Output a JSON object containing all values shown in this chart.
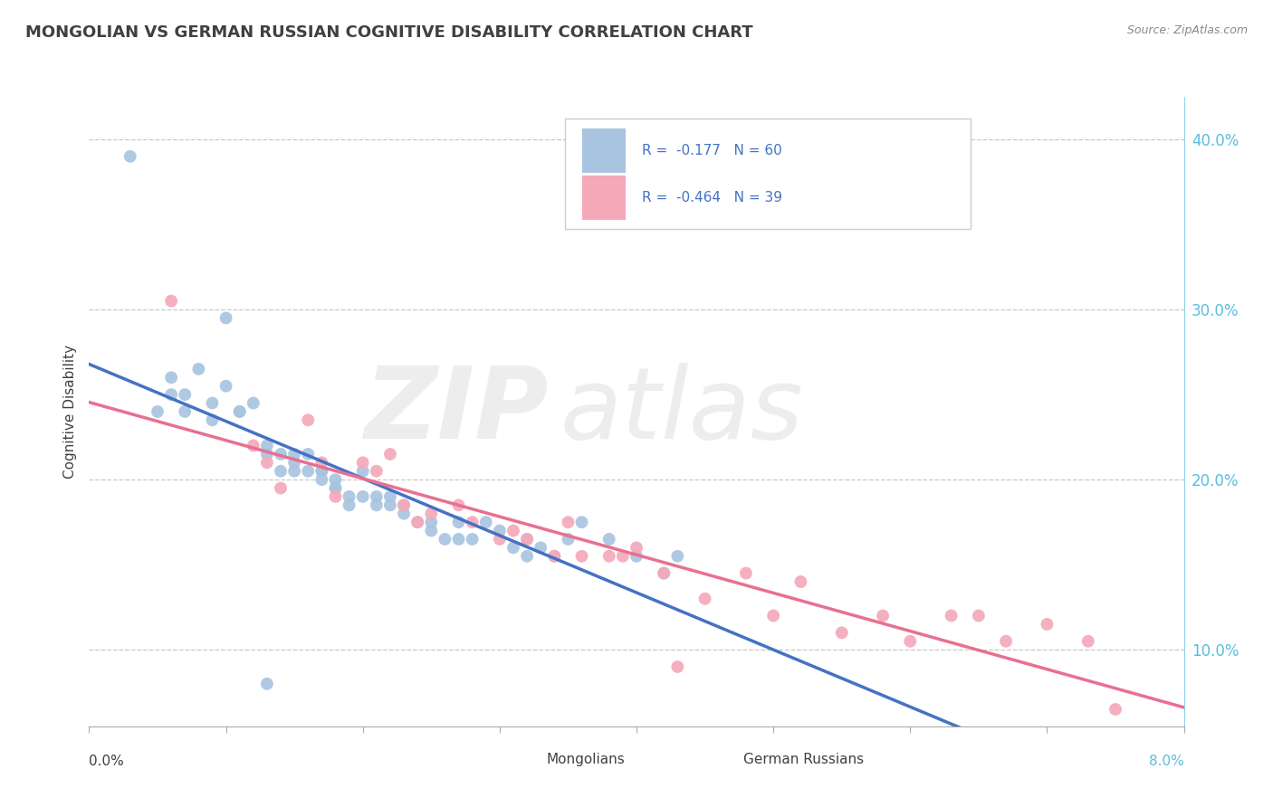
{
  "title": "MONGOLIAN VS GERMAN RUSSIAN COGNITIVE DISABILITY CORRELATION CHART",
  "source": "Source: ZipAtlas.com",
  "ylabel": "Cognitive Disability",
  "r_mongolian": -0.177,
  "n_mongolian": 60,
  "r_german_russian": -0.464,
  "n_german_russian": 39,
  "mongolian_color": "#a8c4e0",
  "german_russian_color": "#f4a8b8",
  "mongolian_line_color": "#4472c4",
  "german_russian_line_color": "#e87090",
  "legend_text_color": "#4472c4",
  "title_color": "#404040",
  "background_color": "#ffffff",
  "grid_color": "#c8c8c8",
  "right_axis_color": "#5bbde0",
  "y_ticks_right": [
    0.1,
    0.2,
    0.3,
    0.4
  ],
  "y_tick_labels_right": [
    "10.0%",
    "20.0%",
    "30.0%",
    "40.0%"
  ],
  "x_range": [
    0.0,
    0.08
  ],
  "y_range": [
    0.055,
    0.425
  ],
  "mongolian_x": [
    0.003,
    0.005,
    0.006,
    0.006,
    0.007,
    0.007,
    0.008,
    0.009,
    0.009,
    0.01,
    0.011,
    0.011,
    0.012,
    0.013,
    0.013,
    0.014,
    0.014,
    0.015,
    0.015,
    0.015,
    0.016,
    0.016,
    0.017,
    0.017,
    0.017,
    0.018,
    0.018,
    0.018,
    0.019,
    0.019,
    0.02,
    0.02,
    0.021,
    0.021,
    0.022,
    0.022,
    0.023,
    0.023,
    0.024,
    0.025,
    0.025,
    0.026,
    0.027,
    0.027,
    0.028,
    0.029,
    0.03,
    0.031,
    0.032,
    0.032,
    0.033,
    0.034,
    0.035,
    0.036,
    0.038,
    0.04,
    0.042,
    0.043,
    0.01,
    0.013
  ],
  "mongolian_y": [
    0.39,
    0.24,
    0.25,
    0.26,
    0.25,
    0.24,
    0.265,
    0.245,
    0.235,
    0.255,
    0.24,
    0.24,
    0.245,
    0.22,
    0.215,
    0.215,
    0.205,
    0.215,
    0.21,
    0.205,
    0.205,
    0.215,
    0.205,
    0.205,
    0.2,
    0.195,
    0.2,
    0.195,
    0.185,
    0.19,
    0.205,
    0.19,
    0.19,
    0.185,
    0.19,
    0.185,
    0.185,
    0.18,
    0.175,
    0.17,
    0.175,
    0.165,
    0.175,
    0.165,
    0.165,
    0.175,
    0.17,
    0.16,
    0.165,
    0.155,
    0.16,
    0.155,
    0.165,
    0.175,
    0.165,
    0.155,
    0.145,
    0.155,
    0.295,
    0.08
  ],
  "german_russian_x": [
    0.006,
    0.012,
    0.013,
    0.014,
    0.016,
    0.017,
    0.018,
    0.02,
    0.021,
    0.022,
    0.023,
    0.024,
    0.025,
    0.027,
    0.028,
    0.03,
    0.031,
    0.032,
    0.034,
    0.035,
    0.036,
    0.038,
    0.039,
    0.04,
    0.042,
    0.043,
    0.045,
    0.048,
    0.05,
    0.052,
    0.055,
    0.058,
    0.06,
    0.063,
    0.065,
    0.067,
    0.07,
    0.073,
    0.075
  ],
  "german_russian_y": [
    0.305,
    0.22,
    0.21,
    0.195,
    0.235,
    0.21,
    0.19,
    0.21,
    0.205,
    0.215,
    0.185,
    0.175,
    0.18,
    0.185,
    0.175,
    0.165,
    0.17,
    0.165,
    0.155,
    0.175,
    0.155,
    0.155,
    0.155,
    0.16,
    0.145,
    0.09,
    0.13,
    0.145,
    0.12,
    0.14,
    0.11,
    0.12,
    0.105,
    0.12,
    0.12,
    0.105,
    0.115,
    0.105,
    0.065
  ]
}
